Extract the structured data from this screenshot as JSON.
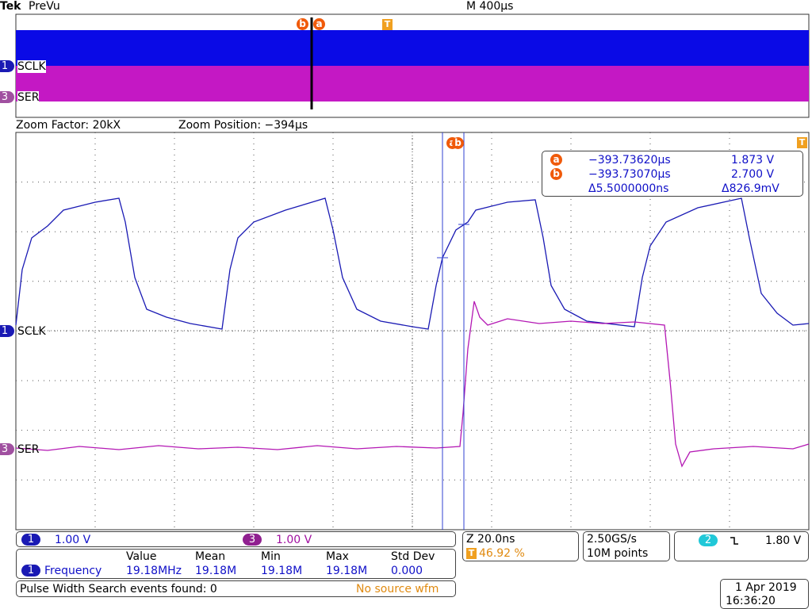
{
  "header": {
    "brand": "Tek",
    "mode": "PreVu",
    "timebase": "M 400µs"
  },
  "overview": {
    "cursor_b": "b",
    "cursor_a": "a",
    "trigger": "T",
    "channels": [
      {
        "number": "1",
        "label": "SCLK"
      },
      {
        "number": "3",
        "label": "SER"
      }
    ]
  },
  "zoom": {
    "factor": "Zoom Factor: 20kX",
    "position": "Zoom Position: −394µs"
  },
  "main": {
    "cursor_a": "a",
    "cursor_b": "b",
    "trigger": "T",
    "channels": [
      {
        "number": "1",
        "label": "SCLK"
      },
      {
        "number": "3",
        "label": "SER"
      }
    ],
    "readout": {
      "a": {
        "marker": "a",
        "time": "−393.73620µs",
        "volts": "1.873 V"
      },
      "b": {
        "marker": "b",
        "time": "−393.73070µs",
        "volts": "2.700 V"
      },
      "delta": {
        "time": "Δ5.5000000ns",
        "volts": "Δ826.9mV"
      }
    }
  },
  "status": {
    "ch1": {
      "number": "1",
      "scale": "1.00 V"
    },
    "ch3": {
      "number": "3",
      "scale": "1.00 V"
    },
    "zoom": "Z 20.0ns",
    "trigger_position": {
      "icon": "T",
      "value": "46.92 %"
    },
    "sample_rate": "2.50GS/s",
    "record_length": "10M points",
    "trigger": {
      "source": "2",
      "level": "1.80 V"
    }
  },
  "measurements": {
    "headers": [
      "Value",
      "Mean",
      "Min",
      "Max",
      "Std Dev"
    ],
    "rows": [
      {
        "channel": "1",
        "name": "Frequency",
        "values": [
          "19.18MHz",
          "19.18M",
          "19.18M",
          "19.18M",
          "0.000"
        ]
      }
    ]
  },
  "search": {
    "text": "Pulse Width Search events found: 0",
    "note": "No source wfm"
  },
  "datetime": {
    "date": "1 Apr 2019",
    "time": "16:36:20"
  }
}
